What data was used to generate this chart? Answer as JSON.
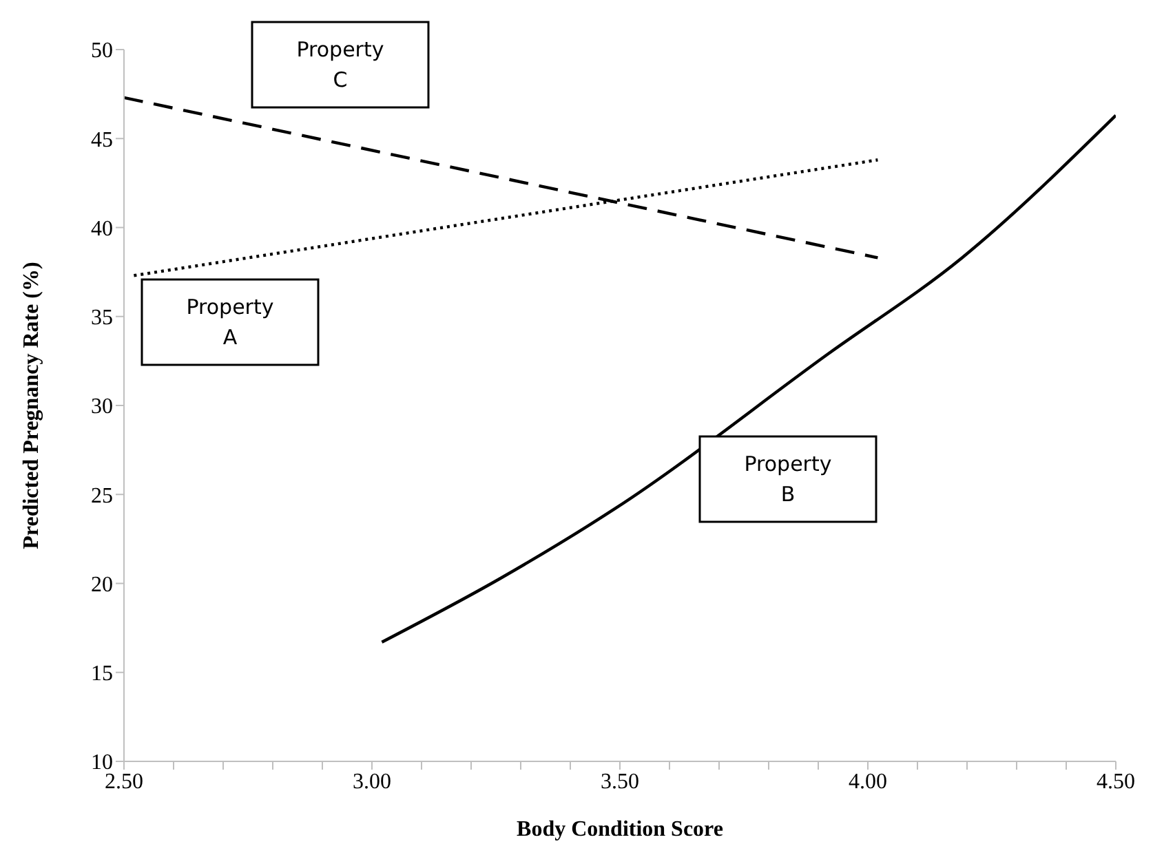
{
  "chart_data": {
    "type": "line",
    "xlabel": "Body Condition Score",
    "ylabel": "Predicted Pregnancy Rate (%)",
    "xlim": [
      2.5,
      4.5
    ],
    "ylim": [
      10,
      50
    ],
    "xticks": [
      {
        "value": 2.5,
        "label": "2.50"
      },
      {
        "value": 2.6,
        "label": null
      },
      {
        "value": 2.7,
        "label": null
      },
      {
        "value": 2.8,
        "label": null
      },
      {
        "value": 2.9,
        "label": null
      },
      {
        "value": 3.0,
        "label": "3.00"
      },
      {
        "value": 3.1,
        "label": null
      },
      {
        "value": 3.2,
        "label": null
      },
      {
        "value": 3.3,
        "label": null
      },
      {
        "value": 3.4,
        "label": null
      },
      {
        "value": 3.5,
        "label": "3.50"
      },
      {
        "value": 3.6,
        "label": null
      },
      {
        "value": 3.7,
        "label": null
      },
      {
        "value": 3.8,
        "label": null
      },
      {
        "value": 3.9,
        "label": null
      },
      {
        "value": 4.0,
        "label": "4.00"
      },
      {
        "value": 4.1,
        "label": null
      },
      {
        "value": 4.2,
        "label": null
      },
      {
        "value": 4.3,
        "label": null
      },
      {
        "value": 4.4,
        "label": null
      },
      {
        "value": 4.5,
        "label": "4.50"
      }
    ],
    "yticks": [
      10,
      15,
      20,
      25,
      30,
      35,
      40,
      45,
      50
    ],
    "grid": false,
    "legend": false,
    "marker": "none",
    "series": [
      {
        "color": "#000000",
        "line_style": "dotted",
        "x": [
          2.52,
          4.02
        ],
        "values": [
          37.3,
          43.8
        ]
      },
      {
        "color": "#000000",
        "line_style": "solid",
        "x": [
          3.02,
          3.26,
          3.49,
          3.92,
          4.19,
          4.5
        ],
        "values": [
          16.7,
          20.3,
          24.2,
          32.9,
          38.3,
          46.3
        ]
      },
      {
        "color": "#000000",
        "line_style": "dashed",
        "x": [
          2.5,
          4.02
        ],
        "values": [
          47.3,
          38.3
        ]
      }
    ],
    "annotations": [
      "Property C",
      "Property A",
      "Property B"
    ]
  }
}
